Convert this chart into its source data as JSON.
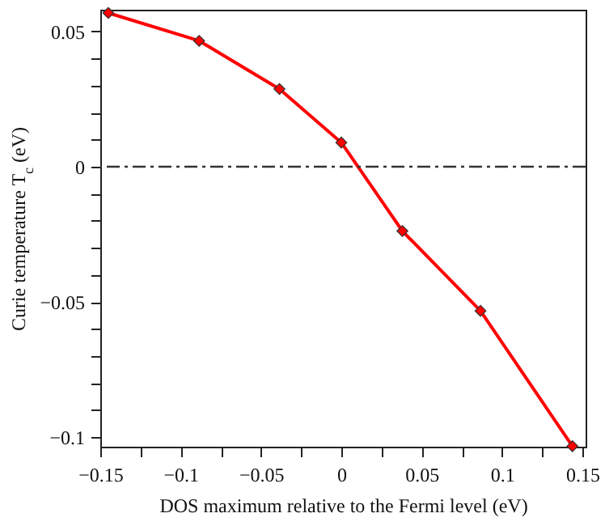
{
  "chart_data": {
    "type": "line",
    "xlabel": "DOS maximum relative to the Fermi level (eV)",
    "ylabel": "Curie temperature T$_{c}$ (eV)",
    "x": [
      -0.145,
      -0.0885,
      -0.0385,
      0.0,
      0.038,
      0.0866,
      0.1438
    ],
    "series": [
      {
        "color": "#ff0000",
        "values": [
          0.0568,
          0.0465,
          0.0287,
          0.0089,
          -0.0238,
          -0.0533,
          -0.1033
        ]
      }
    ],
    "marker": "diamond",
    "line_style": "solid",
    "xlim": [
      -0.15,
      0.152
    ],
    "ylim": [
      -0.1035,
      0.058
    ],
    "xticks": [
      {
        "value": -0.15,
        "label": "−0.15"
      },
      {
        "value": -0.125,
        "label": null
      },
      {
        "value": -0.1,
        "label": "−0.1"
      },
      {
        "value": -0.075,
        "label": null
      },
      {
        "value": -0.05,
        "label": "−0.05"
      },
      {
        "value": -0.025,
        "label": null
      },
      0,
      {
        "value": 0.025,
        "label": null
      },
      0.05,
      {
        "value": 0.075,
        "label": null
      },
      0.1,
      {
        "value": 0.125,
        "label": null
      },
      0.15
    ],
    "yticks": [
      {
        "value": -0.1,
        "label": "−0.1"
      },
      {
        "value": -0.09,
        "label": null
      },
      {
        "value": -0.08,
        "label": null
      },
      {
        "value": -0.07,
        "label": null
      },
      {
        "value": -0.06,
        "label": null
      },
      {
        "value": -0.05,
        "label": "−0.05"
      },
      {
        "value": -0.04,
        "label": null
      },
      {
        "value": -0.03,
        "label": null
      },
      {
        "value": -0.02,
        "label": null
      },
      {
        "value": -0.01,
        "label": null
      },
      0,
      {
        "value": 0.01,
        "label": null
      },
      {
        "value": 0.02,
        "label": null
      },
      {
        "value": 0.03,
        "label": null
      },
      {
        "value": 0.04,
        "label": null
      },
      0.05
    ],
    "ref_lines": [
      {
        "axis": "y",
        "value": 0,
        "color": "#333333",
        "line_style": "dashdot"
      }
    ],
    "grid": false
  }
}
